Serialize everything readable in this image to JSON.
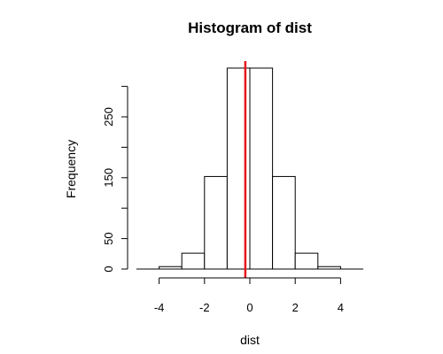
{
  "chart_data": {
    "type": "bar",
    "title": "Histogram of dist",
    "xlabel": "dist",
    "ylabel": "Frequency",
    "bins": [
      {
        "start": -4,
        "end": -3,
        "count": 4
      },
      {
        "start": -3,
        "end": -2,
        "count": 26
      },
      {
        "start": -2,
        "end": -1,
        "count": 152
      },
      {
        "start": -1,
        "end": 0,
        "count": 330
      },
      {
        "start": 0,
        "end": 1,
        "count": 330
      },
      {
        "start": 1,
        "end": 2,
        "count": 152
      },
      {
        "start": 2,
        "end": 3,
        "count": 26
      },
      {
        "start": 3,
        "end": 4,
        "count": 4
      }
    ],
    "xlim": [
      -5,
      5
    ],
    "ylim": [
      0,
      330
    ],
    "x_ticks": [
      -4,
      -2,
      0,
      2,
      4
    ],
    "y_ticks": [
      0,
      50,
      150,
      250
    ],
    "y_minor_ticks": [
      100,
      200,
      300
    ],
    "vline": {
      "x": -0.2,
      "color": "#e8171b"
    },
    "bar_fill": "#ffffff",
    "grid": false
  }
}
